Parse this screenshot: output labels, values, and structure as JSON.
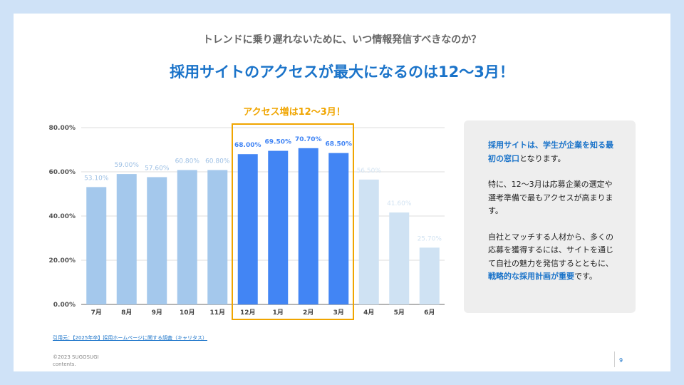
{
  "header": {
    "subtitle": "トレンドに乗り遅れないために、いつ情報発信すべきなのか？",
    "title": "採用サイトのアクセスが最大になるのは12〜3月！"
  },
  "highlight": {
    "label": "アクセス増は12〜3月！"
  },
  "chart_data": {
    "type": "bar",
    "title": "",
    "xlabel": "",
    "ylabel": "",
    "categories": [
      "7月",
      "8月",
      "9月",
      "10月",
      "11月",
      "12月",
      "1月",
      "2月",
      "3月",
      "4月",
      "5月",
      "6月"
    ],
    "values": [
      53.1,
      59.0,
      57.6,
      60.8,
      60.8,
      68.0,
      69.5,
      70.7,
      68.5,
      56.5,
      41.6,
      25.7
    ],
    "value_labels": [
      "53.10%",
      "59.00%",
      "57.60%",
      "60.80%",
      "60.80%",
      "68.00%",
      "69.50%",
      "70.70%",
      "68.50%",
      "56.50%",
      "41.60%",
      "25.70%"
    ],
    "y_ticks": [
      0,
      20,
      40,
      60,
      80
    ],
    "y_tick_labels": [
      "0.00%",
      "20.00%",
      "40.00%",
      "60.00%",
      "80.00%"
    ],
    "ylim": [
      0,
      80
    ],
    "highlight_range": [
      "12月",
      "3月"
    ],
    "colors": {
      "before": "#a4c8ec",
      "highlight": "#4285f4",
      "after": "#cfe2f3",
      "label_before": "#9cbfe4",
      "label_highlight": "#4285f4",
      "label_after": "#d2e3f2"
    }
  },
  "panel": {
    "p1_hl1": "採用サイトは、学生が企業を知る最初の窓口",
    "p1_rest": "となります。",
    "p2": "特に、12〜3月は応募企業の選定や選考準備で最もアクセスが高まります。",
    "p3_a": "自社とマッチする人材から、多くの応募を獲得するには、サイトを通じて自社の魅力を発信するとともに、",
    "p3_hl": "戦略的な採用計画が重要",
    "p3_b": "です。"
  },
  "citation": "引用元：【2025年卒】採用ホームページに関する調査（キャリタス）",
  "footer": {
    "copyright_line1": "©2023 SUGOSUGI",
    "copyright_line2": "contents.",
    "page_number": "9"
  }
}
